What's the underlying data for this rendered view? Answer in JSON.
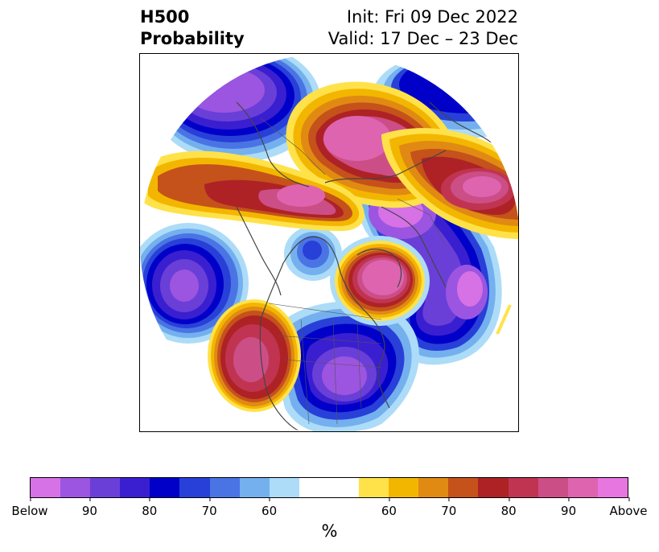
{
  "title": {
    "left_line1": "H500",
    "left_line2": "Probability",
    "right_line1": "Init: Fri 09 Dec 2022",
    "right_line2": "Valid: 17 Dec – 23 Dec"
  },
  "colorbar": {
    "label": "%",
    "colors": [
      "#d671e6",
      "#9c55e0",
      "#6a3fd8",
      "#3a1fd0",
      "#0000c8",
      "#2840d8",
      "#4a74e4",
      "#74b0ee",
      "#acdcf8",
      "#ffffff",
      "#ffe24a",
      "#f3b600",
      "#e08a14",
      "#c4521a",
      "#ae2226",
      "#c03452",
      "#cc4e86",
      "#de64b0",
      "#e876e0"
    ],
    "ticks": [
      "Below",
      "90",
      "80",
      "70",
      "60",
      "60",
      "70",
      "80",
      "90",
      "Above"
    ]
  },
  "map": {
    "projection": "north-polar-stereographic",
    "legend_categories": [
      "Below",
      "Above"
    ]
  }
}
